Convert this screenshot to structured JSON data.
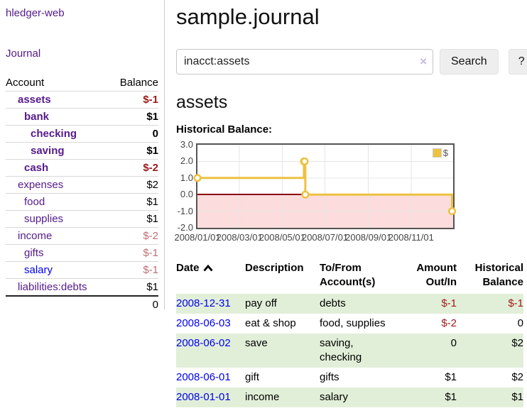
{
  "app": {
    "brand": "hledger-web",
    "nav_journal": "Journal"
  },
  "sidebar": {
    "headers": {
      "account": "Account",
      "balance": "Balance"
    },
    "accounts": [
      {
        "name": "assets",
        "level": 1,
        "bold": true,
        "balance": "$-1",
        "balance_class": "neg-strong",
        "link": "purple"
      },
      {
        "name": "bank",
        "level": 2,
        "bold": true,
        "balance": "$1",
        "balance_class": "pos",
        "link": "purple"
      },
      {
        "name": "checking",
        "level": 3,
        "bold": true,
        "balance": "0",
        "balance_class": "pos",
        "link": "purple"
      },
      {
        "name": "saving",
        "level": 3,
        "bold": true,
        "balance": "$1",
        "balance_class": "pos",
        "link": "purple"
      },
      {
        "name": "cash",
        "level": 2,
        "bold": true,
        "balance": "$-2",
        "balance_class": "neg-strong",
        "link": "purple"
      },
      {
        "name": "expenses",
        "level": 1,
        "bold": false,
        "balance": "$2",
        "balance_class": "pos",
        "link": "purple"
      },
      {
        "name": "food",
        "level": 2,
        "bold": false,
        "balance": "$1",
        "balance_class": "pos",
        "link": "purple"
      },
      {
        "name": "supplies",
        "level": 2,
        "bold": false,
        "balance": "$1",
        "balance_class": "pos",
        "link": "purple"
      },
      {
        "name": "income",
        "level": 1,
        "bold": false,
        "balance": "$-2",
        "balance_class": "neg-soft",
        "link": "purple"
      },
      {
        "name": "gifts",
        "level": 2,
        "bold": false,
        "balance": "$-1",
        "balance_class": "neg-soft",
        "link": "purple"
      },
      {
        "name": "salary",
        "level": 2,
        "bold": false,
        "balance": "$-1",
        "balance_class": "neg-soft",
        "link": "blue"
      },
      {
        "name": "liabilities:debts",
        "level": 1,
        "bold": false,
        "balance": "$1",
        "balance_class": "pos",
        "link": "purple"
      }
    ],
    "total": "0"
  },
  "header": {
    "title": "sample.journal"
  },
  "search": {
    "value": "inacct:assets",
    "clear_icon": "×",
    "button": "Search",
    "help_button": "?"
  },
  "account_page": {
    "heading": "assets",
    "chart_label": "Historical Balance:"
  },
  "chart_data": {
    "type": "line",
    "style": "step-after",
    "title": "Historical Balance",
    "legend": "$",
    "legend_position": "top-right",
    "grid": true,
    "x_range": [
      "2008-01-01",
      "2008-12-31"
    ],
    "ylim": [
      -2,
      3
    ],
    "y_ticks": [
      3,
      2,
      1,
      0,
      -1,
      -2
    ],
    "y_tick_labels": [
      "3.0",
      "2.0",
      "1.0",
      "0.0",
      "-1.0",
      "-2.0"
    ],
    "x_tick_labels": [
      "2008/01/01",
      "2008/03/01",
      "2008/05/01",
      "2008/07/01",
      "2008/09/01",
      "2008/11/01"
    ],
    "series": [
      {
        "name": "$",
        "points": [
          {
            "date": "2008-01-01",
            "value": 1
          },
          {
            "date": "2008-06-01",
            "value": 2
          },
          {
            "date": "2008-06-02",
            "value": 2
          },
          {
            "date": "2008-06-03",
            "value": 0
          },
          {
            "date": "2008-12-31",
            "value": -1
          }
        ]
      }
    ],
    "colors": {
      "line": "#edc240",
      "marker_fill": "#ffffff",
      "negative_fill": "#fcdcdc",
      "zero_line": "#8b0000",
      "grid": "#e6e6e6",
      "border": "#545454"
    }
  },
  "transactions": {
    "headers": {
      "date": "Date",
      "description": "Description",
      "tofrom": "To/From Account(s)",
      "amount": "Amount Out/In",
      "balance": "Historical Balance"
    },
    "sort": "date-ascending",
    "rows": [
      {
        "date": "2008-12-31",
        "description": "pay off",
        "accounts": "debts",
        "amount": "$-1",
        "amount_neg": true,
        "balance": "$-1",
        "balance_neg": true
      },
      {
        "date": "2008-06-03",
        "description": "eat & shop",
        "accounts": "food, supplies",
        "amount": "$-2",
        "amount_neg": true,
        "balance": "0",
        "balance_neg": false
      },
      {
        "date": "2008-06-02",
        "description": "save",
        "accounts": "saving, checking",
        "amount": "0",
        "amount_neg": false,
        "balance": "$2",
        "balance_neg": false
      },
      {
        "date": "2008-06-01",
        "description": "gift",
        "accounts": "gifts",
        "amount": "$1",
        "amount_neg": false,
        "balance": "$2",
        "balance_neg": false
      },
      {
        "date": "2008-01-01",
        "description": "income",
        "accounts": "salary",
        "amount": "$1",
        "amount_neg": false,
        "balance": "$1",
        "balance_neg": false
      }
    ]
  }
}
